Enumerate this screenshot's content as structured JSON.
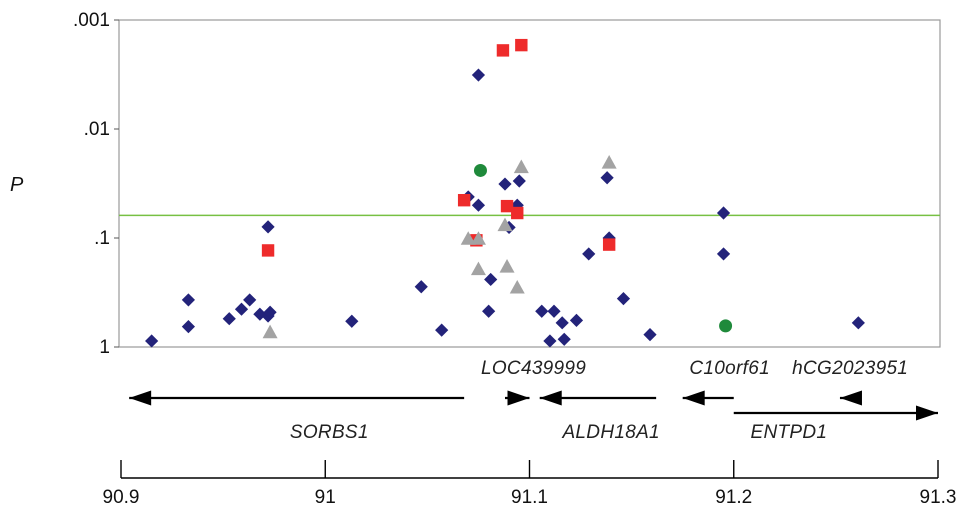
{
  "chart_data": {
    "type": "scatter",
    "ylabel": "P",
    "y_scale": "log",
    "ylim": [
      1,
      0.001
    ],
    "y_ticks": [
      {
        "value": 0.001,
        "label": ".001"
      },
      {
        "value": 0.01,
        "label": ".01"
      },
      {
        "value": 0.1,
        "label": ".1"
      },
      {
        "value": 1,
        "label": "1"
      }
    ],
    "xlim": [
      90.9,
      91.3
    ],
    "x_ticks": [
      {
        "value": 90.9,
        "label": "90.9"
      },
      {
        "value": 91.0,
        "label": "91"
      },
      {
        "value": 91.1,
        "label": "91.1"
      },
      {
        "value": 91.2,
        "label": "91.2"
      },
      {
        "value": 91.3,
        "label": "91.3"
      }
    ],
    "threshold": {
      "p": 0.062,
      "color": "#77c043"
    },
    "plot_border_color": "#999999",
    "series": [
      {
        "marker": "diamond",
        "color": "#23237a",
        "points": [
          [
            90.915,
            0.88
          ],
          [
            90.933,
            0.37
          ],
          [
            90.933,
            0.65
          ],
          [
            90.953,
            0.55
          ],
          [
            90.959,
            0.45
          ],
          [
            90.963,
            0.37
          ],
          [
            90.968,
            0.5
          ],
          [
            90.972,
            0.079
          ],
          [
            90.972,
            0.52
          ],
          [
            90.973,
            0.48
          ],
          [
            91.013,
            0.58
          ],
          [
            91.047,
            0.28
          ],
          [
            91.057,
            0.7
          ],
          [
            91.07,
            0.042
          ],
          [
            91.075,
            0.0032
          ],
          [
            91.075,
            0.05
          ],
          [
            91.08,
            0.47
          ],
          [
            91.081,
            0.24
          ],
          [
            91.088,
            0.032
          ],
          [
            91.09,
            0.08
          ],
          [
            91.094,
            0.05
          ],
          [
            91.095,
            0.03
          ],
          [
            91.106,
            0.47
          ],
          [
            91.11,
            0.88
          ],
          [
            91.112,
            0.47
          ],
          [
            91.116,
            0.6
          ],
          [
            91.117,
            0.85
          ],
          [
            91.123,
            0.57
          ],
          [
            91.129,
            0.14
          ],
          [
            91.138,
            0.028
          ],
          [
            91.139,
            0.1
          ],
          [
            91.146,
            0.36
          ],
          [
            91.159,
            0.77
          ],
          [
            91.195,
            0.059
          ],
          [
            91.195,
            0.14
          ],
          [
            91.261,
            0.6
          ]
        ]
      },
      {
        "marker": "square",
        "color": "#ee2b2b",
        "points": [
          [
            90.972,
            0.13
          ],
          [
            91.068,
            0.045
          ],
          [
            91.074,
            0.105
          ],
          [
            91.087,
            0.0019
          ],
          [
            91.089,
            0.051
          ],
          [
            91.094,
            0.059
          ],
          [
            91.096,
            0.0017
          ],
          [
            91.139,
            0.115
          ]
        ]
      },
      {
        "marker": "triangle",
        "color": "#a3a3a3",
        "points": [
          [
            90.973,
            0.72
          ],
          [
            91.07,
            0.1
          ],
          [
            91.075,
            0.19
          ],
          [
            91.075,
            0.1
          ],
          [
            91.088,
            0.075
          ],
          [
            91.089,
            0.18
          ],
          [
            91.094,
            0.28
          ],
          [
            91.096,
            0.022
          ],
          [
            91.139,
            0.02
          ]
        ]
      },
      {
        "marker": "circle",
        "color": "#1f8a3b",
        "points": [
          [
            91.076,
            0.024
          ],
          [
            91.196,
            0.64
          ]
        ]
      }
    ],
    "genes": [
      {
        "name": "SORBS1",
        "start": 91.068,
        "end": 90.904,
        "direction": "left",
        "row": 1,
        "label_x": 91.002,
        "label_row": "below"
      },
      {
        "name": "LOC439999",
        "start": 91.088,
        "end": 91.1,
        "direction": "right",
        "row": 1,
        "label_x": 91.102,
        "label_row": "above"
      },
      {
        "name": "ALDH18A1",
        "start": 91.162,
        "end": 91.105,
        "direction": "left",
        "row": 1,
        "label_x": 91.14,
        "label_row": "below"
      },
      {
        "name": "C10orf61",
        "start": 91.2,
        "end": 91.175,
        "direction": "left",
        "row": 1,
        "label_x": 91.198,
        "label_row": "above"
      },
      {
        "name": "hCG2023951",
        "start": 91.26,
        "end": 91.252,
        "direction": "left",
        "row": 1,
        "label_x": 91.257,
        "label_row": "above"
      },
      {
        "name": "ENTPD1",
        "start": 91.2,
        "end": 91.3,
        "direction": "right",
        "row": 2,
        "label_x": 91.227,
        "label_row": "below"
      }
    ]
  }
}
